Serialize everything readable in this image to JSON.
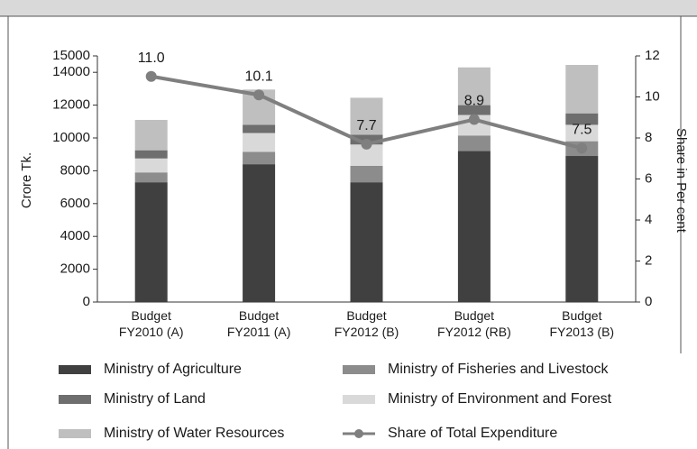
{
  "chart_data": {
    "type": "bar",
    "categories": [
      "Budget FY2010 (A)",
      "Budget FY2011 (A)",
      "Budget FY2012 (B)",
      "Budget FY2012 (RB)",
      "Budget FY2013 (B)"
    ],
    "stacked": true,
    "ylabel": "Crore Tk.",
    "y2label": "Share in Per cent",
    "ylim": [
      0,
      15000
    ],
    "yticks": [
      0,
      2000,
      4000,
      6000,
      8000,
      10000,
      12000,
      14000,
      15000
    ],
    "y2lim": [
      0,
      12
    ],
    "y2ticks": [
      0,
      2,
      4,
      6,
      8,
      10,
      12
    ],
    "series": [
      {
        "name": "Ministry of Agriculture",
        "color": "#404040",
        "values": [
          7300,
          8400,
          7300,
          9200,
          8900
        ]
      },
      {
        "name": "Ministry of Fisheries and Livestock",
        "color": "#8c8c8c",
        "values": [
          600,
          750,
          1000,
          950,
          900
        ]
      },
      {
        "name": "Ministry of Environment and Forest",
        "color": "#d9d9d9",
        "values": [
          850,
          1150,
          1300,
          1250,
          1000
        ]
      },
      {
        "name": "Ministry of Land",
        "color": "#6e6e6e",
        "values": [
          500,
          500,
          600,
          600,
          700
        ]
      },
      {
        "name": "Ministry of Water Resources",
        "color": "#bfbfbf",
        "values": [
          1850,
          2150,
          2250,
          2300,
          2950
        ]
      },
      {
        "name": "Share of Total Expenditure",
        "color": "#7f7f7f",
        "type": "line",
        "axis": "y2",
        "values": [
          11.0,
          10.1,
          7.7,
          8.9,
          7.5
        ],
        "value_labels": [
          "11.0",
          "10.1",
          "7.7",
          "8.9",
          "7.5"
        ]
      }
    ]
  }
}
